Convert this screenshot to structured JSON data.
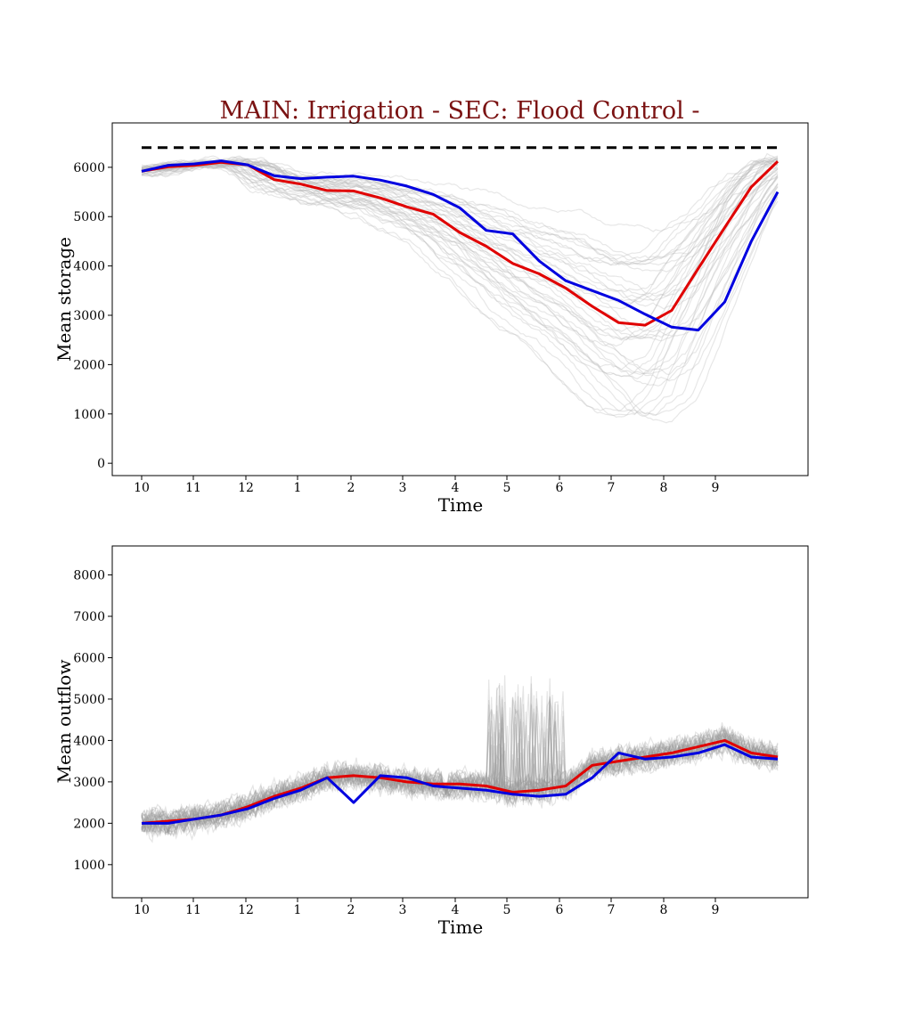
{
  "chart_data": [
    {
      "type": "line",
      "title": "MAIN: Irrigation - SEC: Flood Control -",
      "xlabel": "Time",
      "ylabel": "Mean storage",
      "x_tick_labels": [
        "10",
        "11",
        "12",
        "1",
        "2",
        "3",
        "4",
        "5",
        "6",
        "7",
        "8",
        "9"
      ],
      "yticks": [
        0,
        1000,
        2000,
        3000,
        4000,
        5000,
        6000
      ],
      "ylim": [
        -250,
        6900
      ],
      "reference_line": {
        "value": 6400,
        "color": "#000000",
        "style": "dashed"
      },
      "ensemble": {
        "color": "#bbbbbb",
        "description_count": 40
      },
      "series": [
        {
          "color": "#e00000",
          "x": [
            0,
            0.5,
            1,
            1.5,
            2,
            2.5,
            3,
            3.5,
            4,
            4.5,
            5,
            5.5,
            6,
            6.5,
            7,
            7.5,
            8,
            8.5,
            9,
            9.5,
            10,
            10.5,
            11,
            11.5,
            12
          ],
          "values": [
            5920,
            6010,
            6040,
            6100,
            6050,
            5750,
            5660,
            5530,
            5520,
            5380,
            5200,
            5050,
            4680,
            4400,
            4050,
            3840,
            3550,
            3180,
            2850,
            2800,
            3100,
            3950,
            4780,
            5600,
            6120
          ]
        },
        {
          "color": "#0000e0",
          "x": [
            0,
            0.5,
            1,
            1.5,
            2,
            2.5,
            3,
            3.5,
            4,
            4.5,
            5,
            5.5,
            6,
            6.5,
            7,
            7.5,
            8,
            8.5,
            9,
            9.5,
            10,
            10.5,
            11,
            11.5,
            12
          ],
          "values": [
            5920,
            6040,
            6070,
            6130,
            6050,
            5830,
            5770,
            5800,
            5820,
            5740,
            5620,
            5450,
            5180,
            4720,
            4650,
            4100,
            3700,
            3500,
            3300,
            3020,
            2760,
            2700,
            3270,
            4500,
            5500
          ]
        }
      ]
    },
    {
      "type": "line",
      "title": "",
      "xlabel": "Time",
      "ylabel": "Mean outflow",
      "x_tick_labels": [
        "10",
        "11",
        "12",
        "1",
        "2",
        "3",
        "4",
        "5",
        "6",
        "7",
        "8",
        "9"
      ],
      "yticks": [
        1000,
        2000,
        3000,
        4000,
        5000,
        6000,
        7000,
        8000
      ],
      "ylim": [
        200,
        8700
      ],
      "ensemble": {
        "color": "#999999",
        "description_count": 40
      },
      "series": [
        {
          "color": "#e00000",
          "x": [
            0,
            0.5,
            1,
            1.5,
            2,
            2.5,
            3,
            3.5,
            4,
            4.5,
            5,
            5.5,
            6,
            6.5,
            7,
            7.5,
            8,
            8.5,
            9,
            9.5,
            10,
            10.5,
            11,
            11.5,
            12
          ],
          "values": [
            2000,
            2050,
            2100,
            2200,
            2400,
            2650,
            2850,
            3100,
            3150,
            3100,
            3000,
            2950,
            2950,
            2900,
            2750,
            2800,
            2900,
            3400,
            3500,
            3600,
            3700,
            3850,
            4000,
            3700,
            3600
          ]
        },
        {
          "color": "#0000e0",
          "x": [
            0,
            0.5,
            1,
            1.5,
            2,
            2.5,
            3,
            3.5,
            4,
            4.5,
            5,
            5.5,
            6,
            6.5,
            7,
            7.5,
            8,
            8.5,
            9,
            9.5,
            10,
            10.5,
            11,
            11.5,
            12
          ],
          "values": [
            2000,
            2000,
            2100,
            2200,
            2350,
            2600,
            2800,
            3100,
            2500,
            3150,
            3100,
            2900,
            2850,
            2800,
            2700,
            2650,
            2700,
            3100,
            3700,
            3550,
            3600,
            3700,
            3900,
            3600,
            3550
          ]
        }
      ]
    }
  ]
}
